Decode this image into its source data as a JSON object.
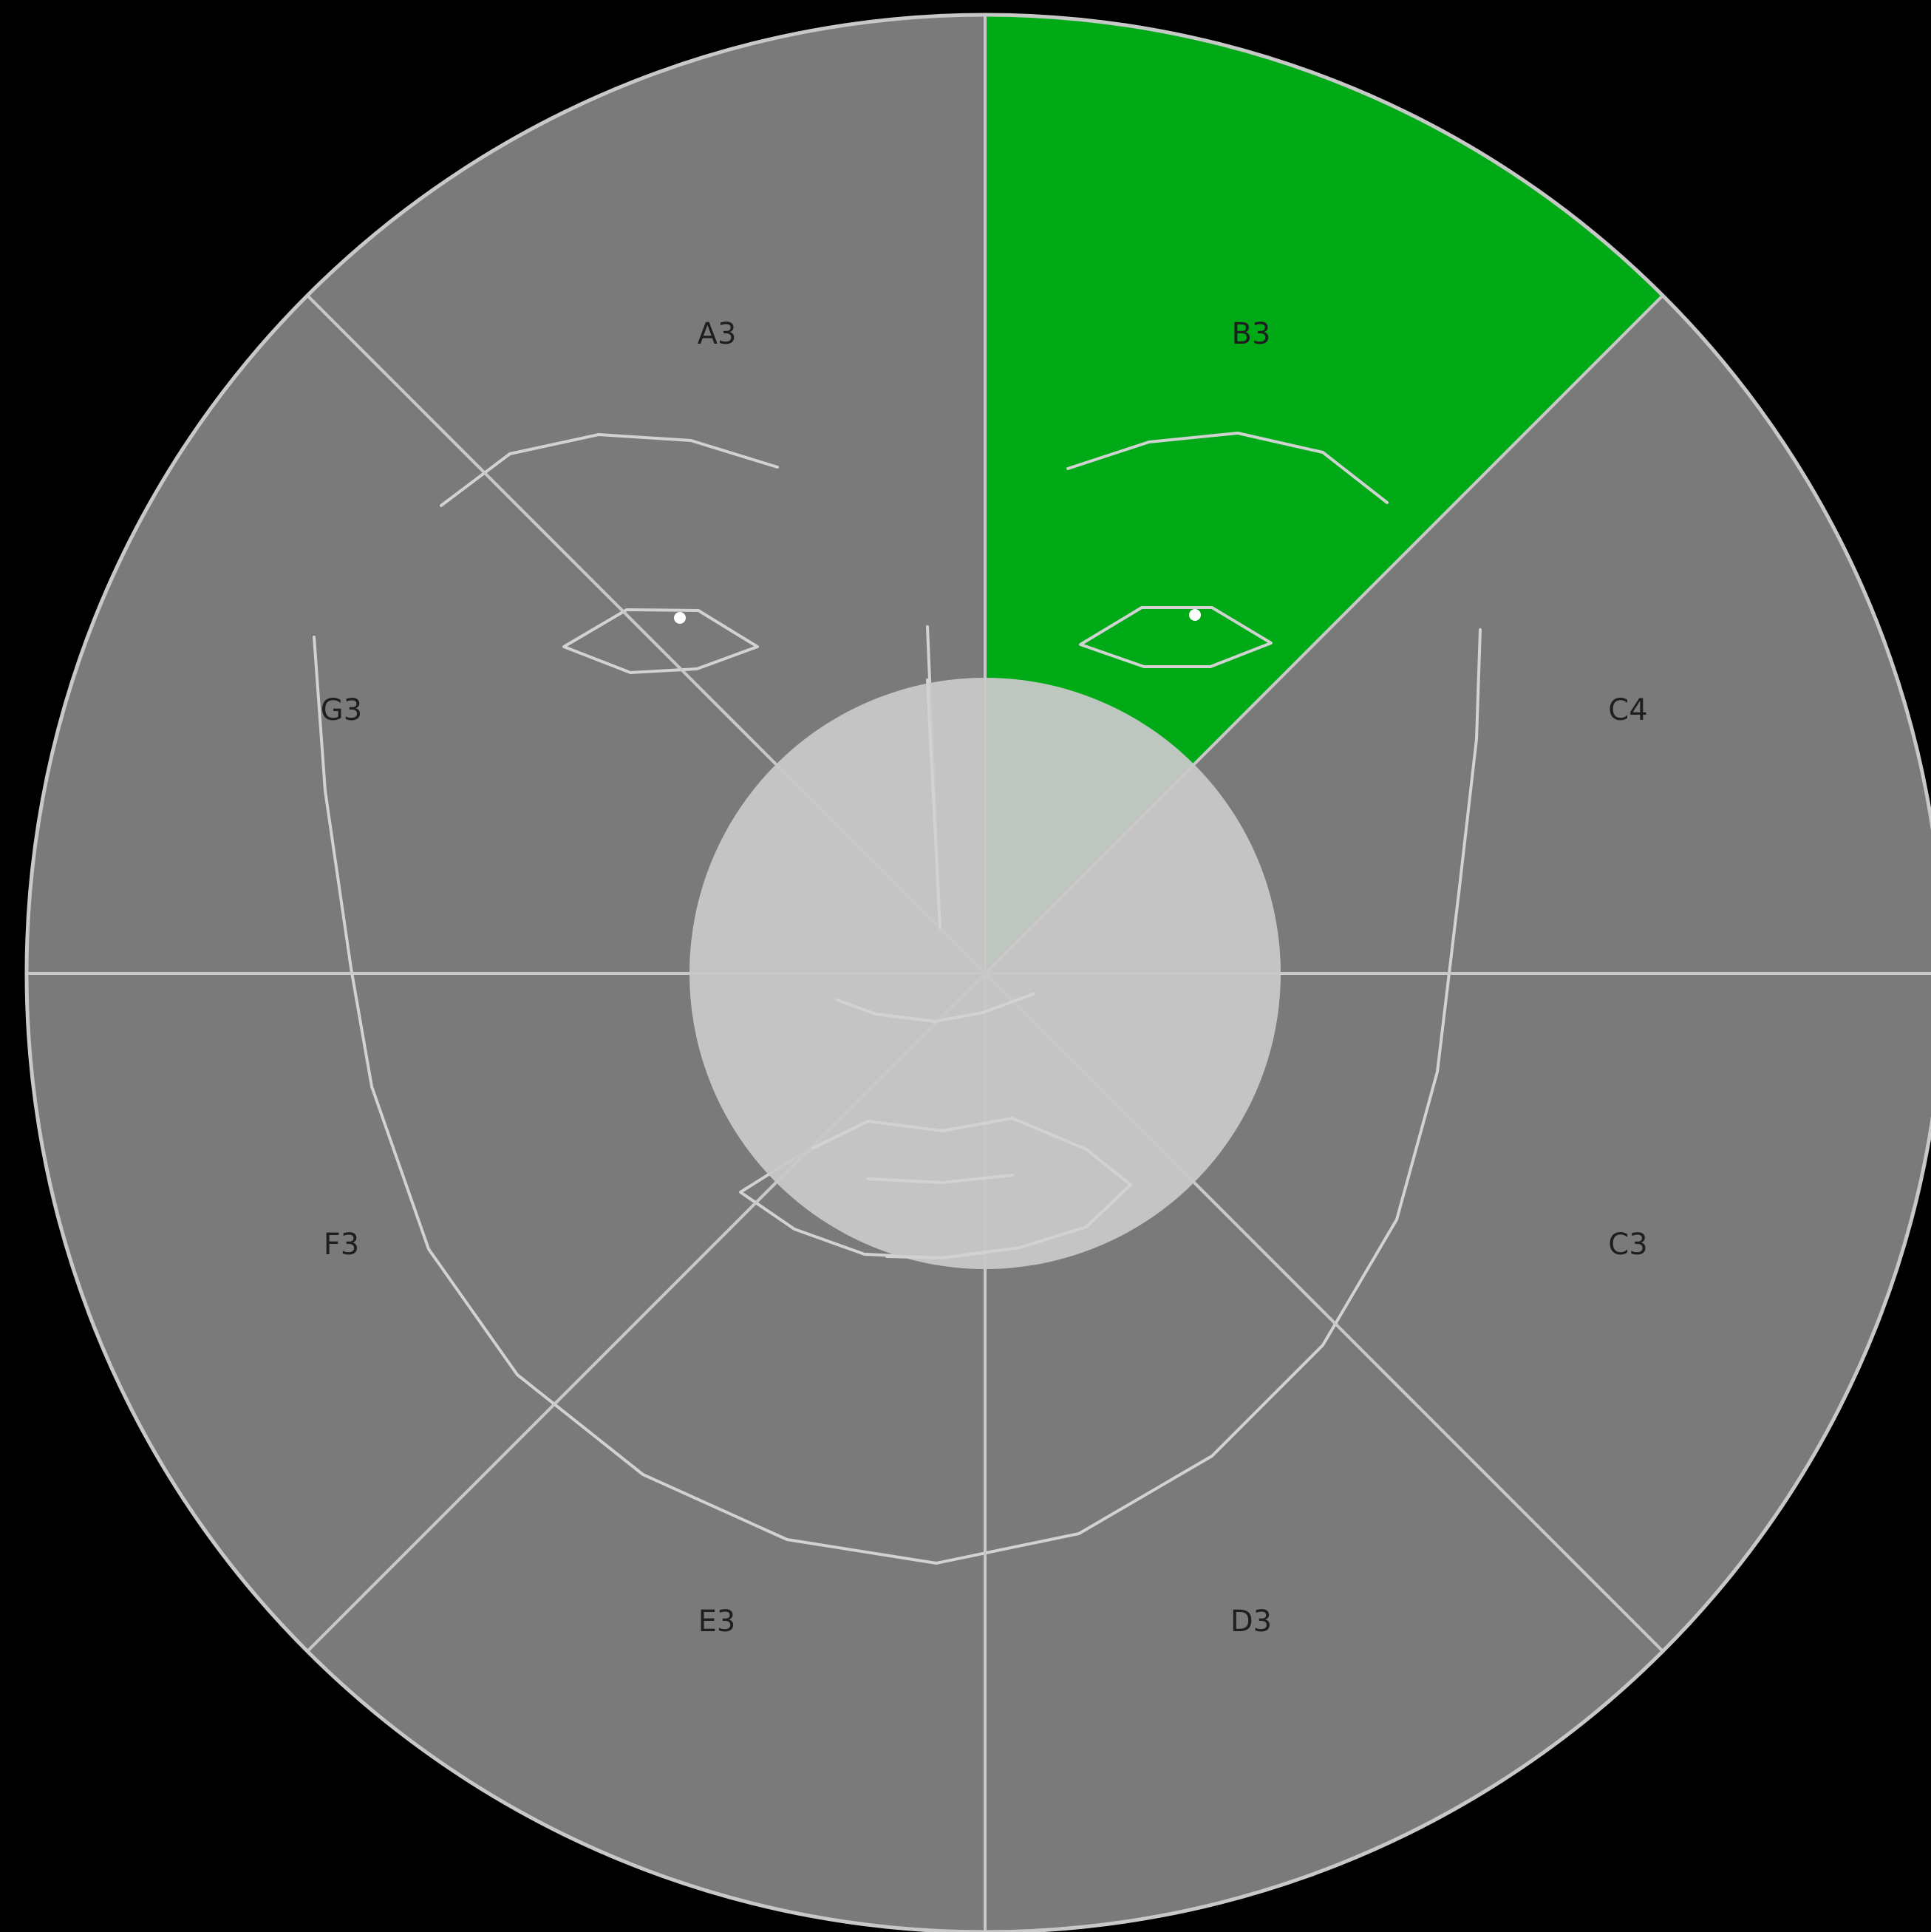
{
  "sectors": [
    {
      "id": "A3",
      "label": "A3",
      "selected": false
    },
    {
      "id": "B3",
      "label": "B3",
      "selected": true
    },
    {
      "id": "C4",
      "label": "C4",
      "selected": false
    },
    {
      "id": "C3",
      "label": "C3",
      "selected": false
    },
    {
      "id": "D3",
      "label": "D3",
      "selected": false
    },
    {
      "id": "E3",
      "label": "E3",
      "selected": false
    },
    {
      "id": "F3",
      "label": "F3",
      "selected": false
    },
    {
      "id": "G3",
      "label": "G3",
      "selected": false
    }
  ],
  "colors": {
    "background": "#000000",
    "sector": "#7a7a7a",
    "selected": "#00aa17",
    "center": "#c8c8c8",
    "lines": "#c8c8c8",
    "label": "#1e1e1e"
  }
}
